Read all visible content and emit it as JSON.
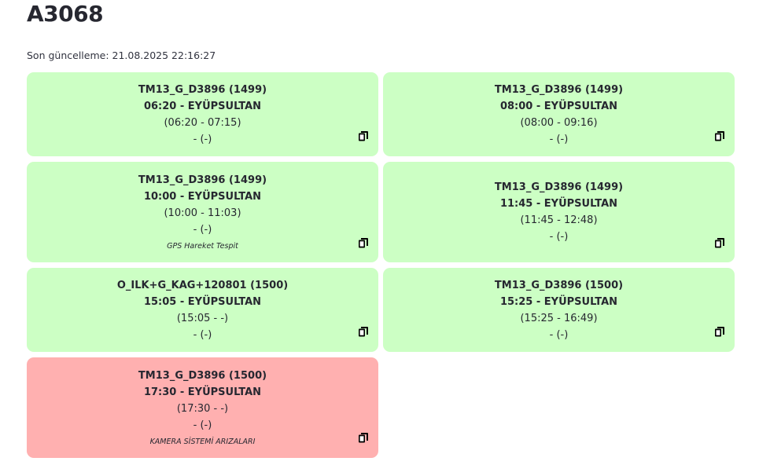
{
  "header": {
    "title": "A3068",
    "last_update": "Son güncelleme: 21.08.2025 22:16:27"
  },
  "cards": [
    {
      "route": "TM13_G_D3896 (1499)",
      "departure": "06:20 - EYÜPSULTAN",
      "window": "(06:20 - 07:15)",
      "extra": "- (-)",
      "note": "",
      "status": "ok"
    },
    {
      "route": "TM13_G_D3896 (1499)",
      "departure": "08:00 - EYÜPSULTAN",
      "window": "(08:00 - 09:16)",
      "extra": "- (-)",
      "note": "",
      "status": "ok"
    },
    {
      "route": "TM13_G_D3896 (1499)",
      "departure": "10:00 - EYÜPSULTAN",
      "window": "(10:00 - 11:03)",
      "extra": "- (-)",
      "note": "GPS Hareket Tespit",
      "status": "ok"
    },
    {
      "route": "TM13_G_D3896 (1499)",
      "departure": "11:45 - EYÜPSULTAN",
      "window": "(11:45 - 12:48)",
      "extra": "- (-)",
      "note": "",
      "status": "ok"
    },
    {
      "route": "O_ILK+G_KAG+120801 (1500)",
      "departure": "15:05 - EYÜPSULTAN",
      "window": "(15:05 - -)",
      "extra": "- (-)",
      "note": "",
      "status": "ok"
    },
    {
      "route": "TM13_G_D3896 (1500)",
      "departure": "15:25 - EYÜPSULTAN",
      "window": "(15:25 - 16:49)",
      "extra": "- (-)",
      "note": "",
      "status": "ok"
    },
    {
      "route": "TM13_G_D3896 (1500)",
      "departure": "17:30 - EYÜPSULTAN",
      "window": "(17:30 - -)",
      "extra": "- (-)",
      "note": "KAMERA SİSTEMİ ARIZALARI",
      "status": "alert"
    }
  ],
  "colors": {
    "ok_background": "#ccffc4",
    "alert_background": "#ffb0b0",
    "text": "#262730"
  },
  "icons": {
    "copy": "copy-icon"
  }
}
